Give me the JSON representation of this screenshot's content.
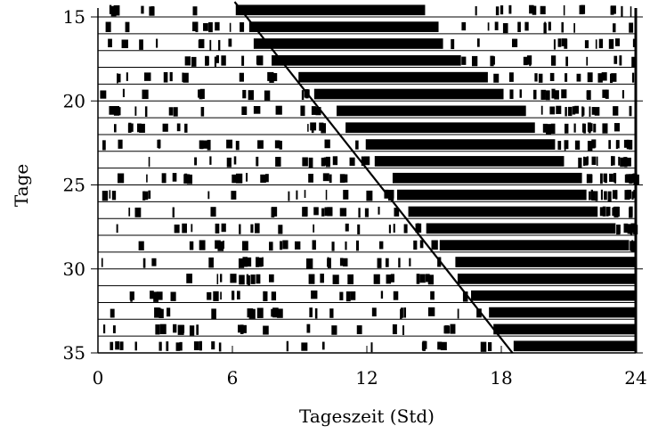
{
  "chart_data": {
    "type": "actogram",
    "xlabel": "Tageszeit (Std)",
    "ylabel": "Tage",
    "xlim": [
      0,
      24
    ],
    "ylim": [
      15,
      35
    ],
    "xticks": [
      0,
      6,
      12,
      18,
      24
    ],
    "yticks": [
      15,
      20,
      25,
      30,
      35
    ],
    "day_range": [
      15,
      35
    ],
    "activity_onset": [
      {
        "day": 15,
        "hour": 6.1
      },
      {
        "day": 16,
        "hour": 6.7
      },
      {
        "day": 17,
        "hour": 6.9
      },
      {
        "day": 18,
        "hour": 7.7
      },
      {
        "day": 19,
        "hour": 8.9
      },
      {
        "day": 20,
        "hour": 9.6
      },
      {
        "day": 21,
        "hour": 10.6
      },
      {
        "day": 22,
        "hour": 11.0
      },
      {
        "day": 23,
        "hour": 11.9
      },
      {
        "day": 24,
        "hour": 12.3
      },
      {
        "day": 25,
        "hour": 13.1
      },
      {
        "day": 26,
        "hour": 13.3
      },
      {
        "day": 27,
        "hour": 13.8
      },
      {
        "day": 28,
        "hour": 14.6
      },
      {
        "day": 29,
        "hour": 15.2
      },
      {
        "day": 30,
        "hour": 15.9
      },
      {
        "day": 31,
        "hour": 16.0
      },
      {
        "day": 32,
        "hour": 16.6
      },
      {
        "day": 33,
        "hour": 17.4
      },
      {
        "day": 34,
        "hour": 17.6
      },
      {
        "day": 35,
        "hour": 18.5
      }
    ],
    "activity_bout_hours": 8.5,
    "regression_line": {
      "start": {
        "day": 15,
        "hour": 6.1
      },
      "end": {
        "day": 35,
        "hour": 18.5
      }
    },
    "grid": false,
    "colors": {
      "ink": "#000000",
      "background": "#ffffff"
    }
  }
}
